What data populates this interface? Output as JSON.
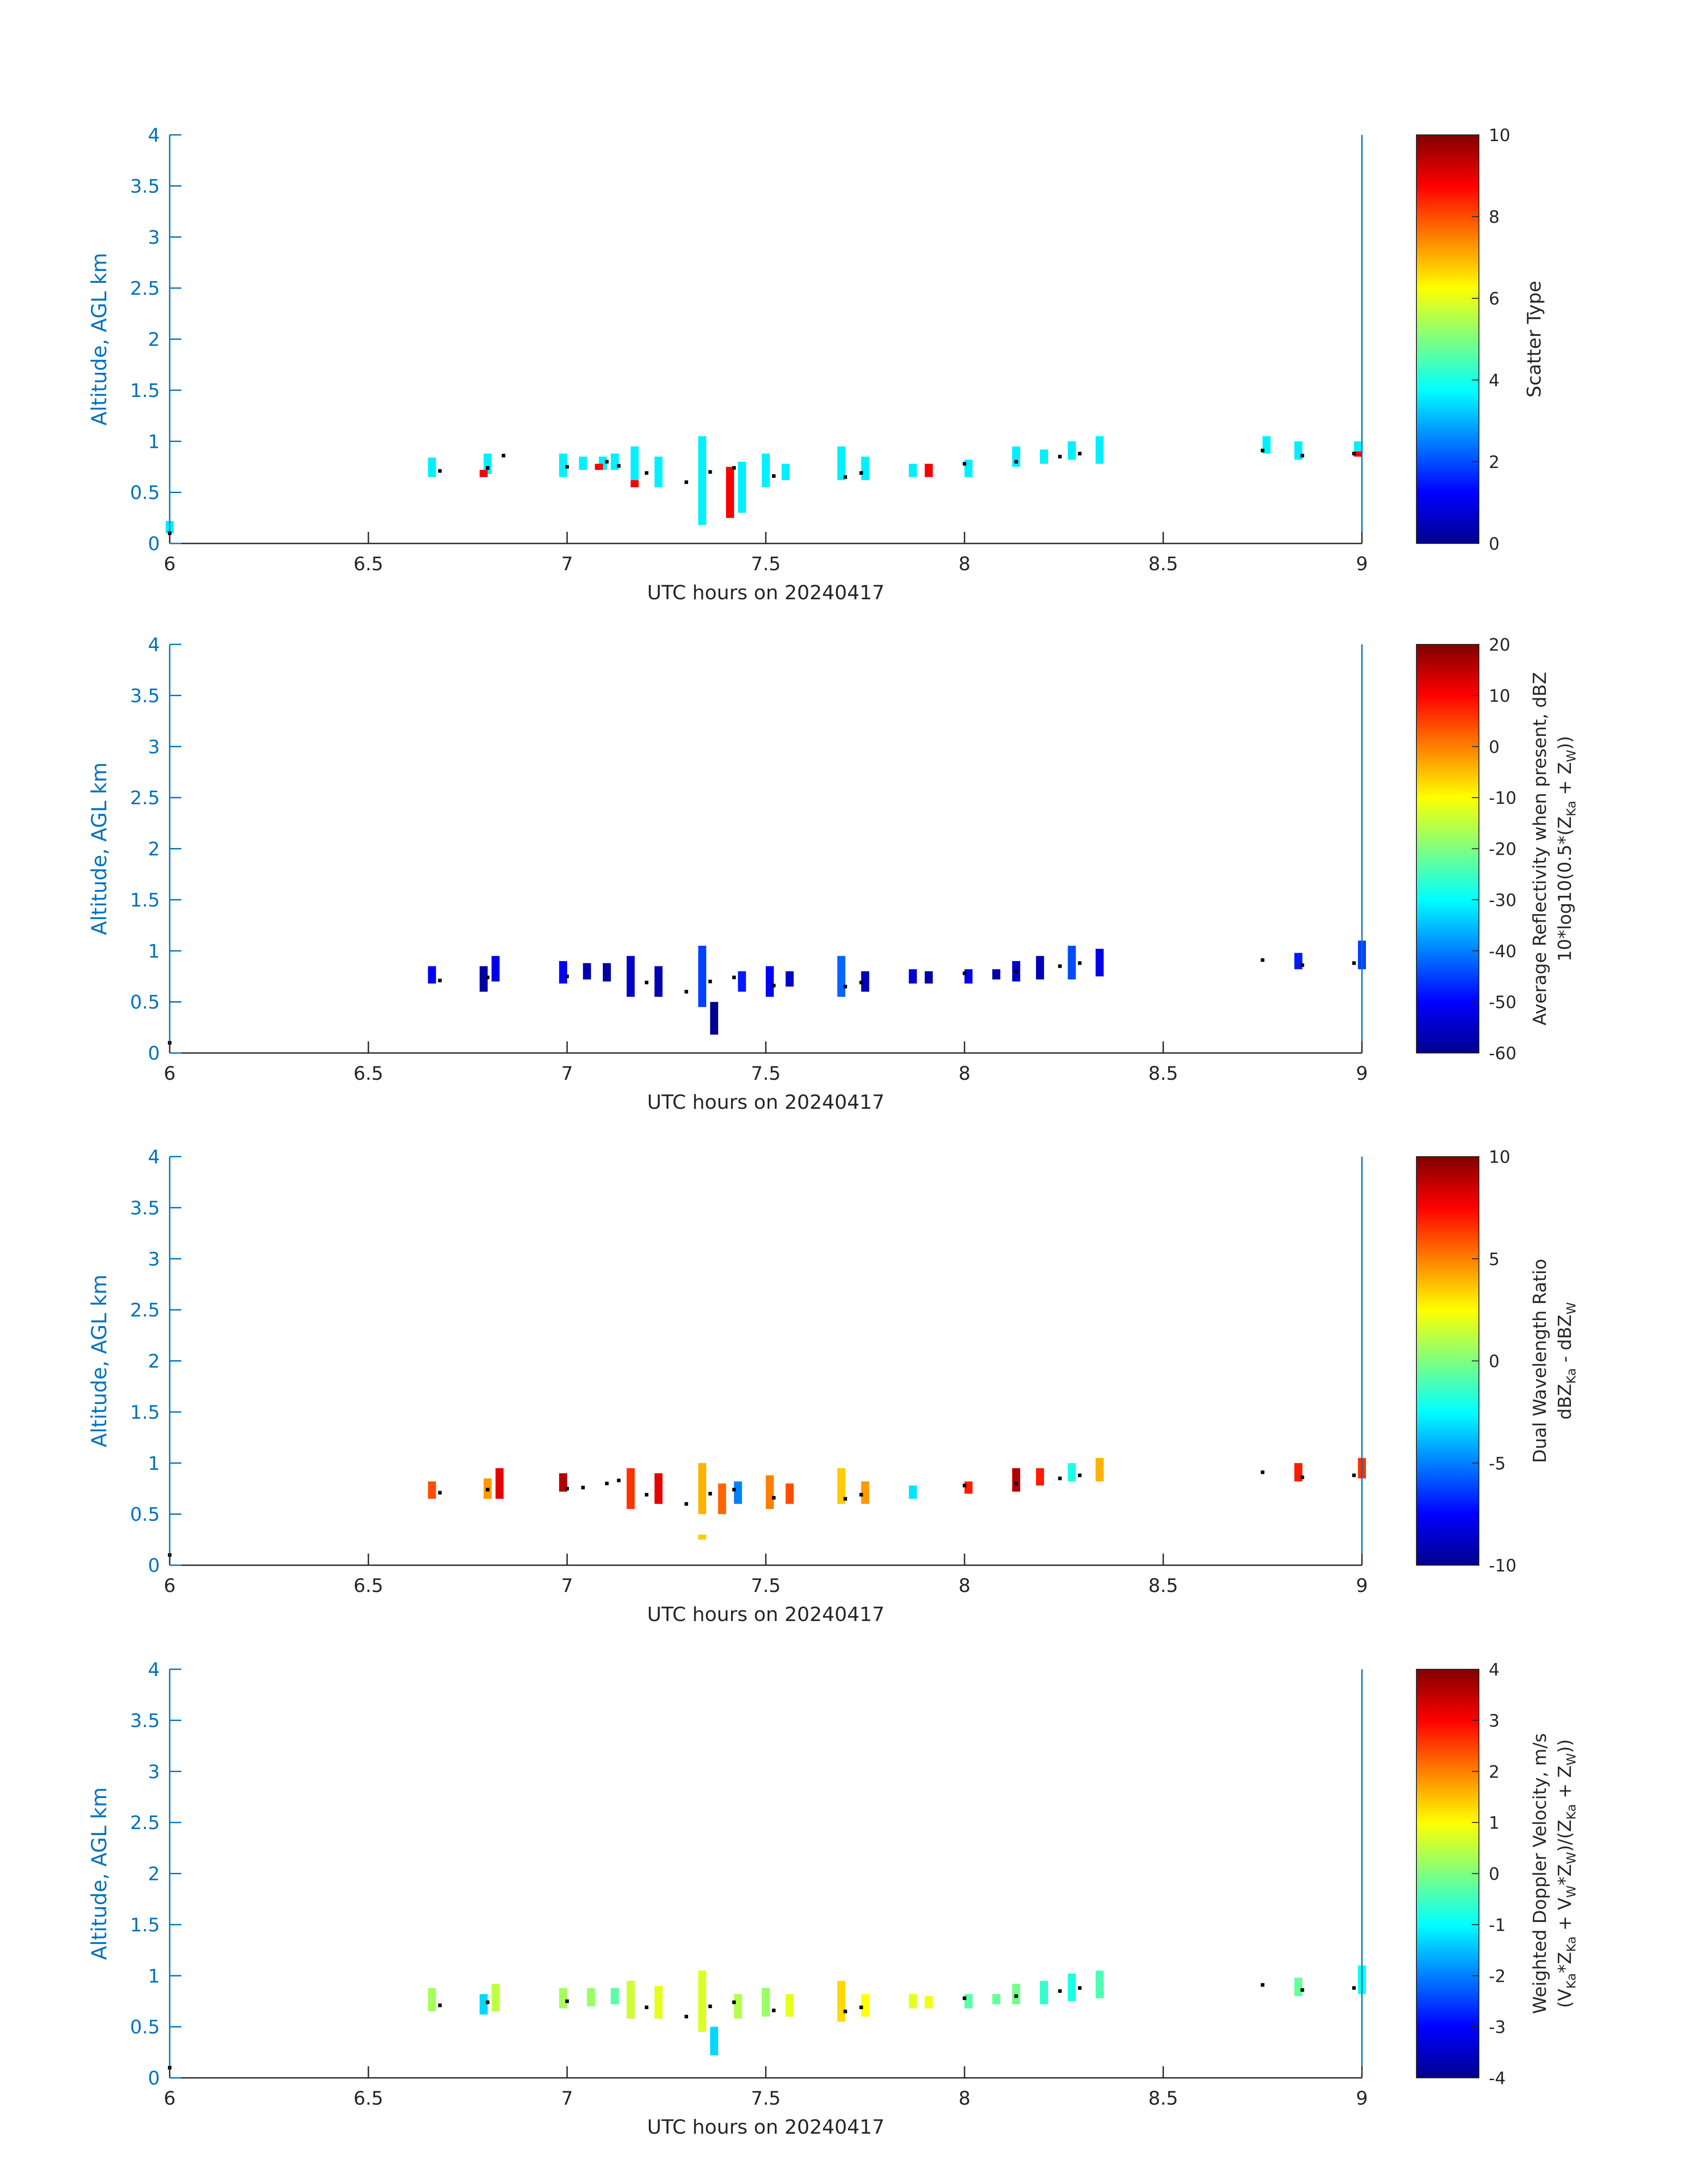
{
  "colors": {
    "axis": "#0072BD",
    "text": "#262626",
    "dots": "#000000",
    "background": "#ffffff"
  },
  "chart_data": [
    {
      "type": "heatmap",
      "xlabel": "UTC hours on 20240417",
      "ylabel": "Altitude, AGL km",
      "xlim": [
        6,
        9
      ],
      "ylim": [
        0,
        4
      ],
      "xticks": [
        "6",
        "6.5",
        "7",
        "7.5",
        "8",
        "8.5",
        "9"
      ],
      "yticks": [
        "0",
        "0.5",
        "1",
        "1.5",
        "2",
        "2.5",
        "3",
        "3.5",
        "4"
      ],
      "colorbar": {
        "label_lines": [
          "Scatter Type"
        ],
        "range": [
          0,
          10
        ],
        "ticks": [
          "0",
          "2",
          "4",
          "6",
          "8",
          "10"
        ],
        "colormap": "jet"
      },
      "cells": [
        {
          "x": 6.0,
          "y0": 0.1,
          "y1": 0.22,
          "v": 3.6
        },
        {
          "x": 6.66,
          "y0": 0.65,
          "y1": 0.84,
          "v": 3.6
        },
        {
          "x": 6.8,
          "y0": 0.68,
          "y1": 0.88,
          "v": 3.6
        },
        {
          "x": 6.79,
          "y0": 0.65,
          "y1": 0.72,
          "v": 8.8
        },
        {
          "x": 6.99,
          "y0": 0.65,
          "y1": 0.88,
          "v": 3.6
        },
        {
          "x": 7.04,
          "y0": 0.72,
          "y1": 0.85,
          "v": 3.6
        },
        {
          "x": 7.09,
          "y0": 0.72,
          "y1": 0.85,
          "v": 3.6
        },
        {
          "x": 7.08,
          "y0": 0.72,
          "y1": 0.78,
          "v": 8.8
        },
        {
          "x": 7.12,
          "y0": 0.72,
          "y1": 0.88,
          "v": 3.6
        },
        {
          "x": 7.17,
          "y0": 0.62,
          "y1": 0.95,
          "v": 3.6
        },
        {
          "x": 7.17,
          "y0": 0.55,
          "y1": 0.62,
          "v": 8.8
        },
        {
          "x": 7.23,
          "y0": 0.55,
          "y1": 0.85,
          "v": 3.6
        },
        {
          "x": 7.34,
          "y0": 0.18,
          "y1": 1.05,
          "v": 3.6
        },
        {
          "x": 7.41,
          "y0": 0.25,
          "y1": 0.75,
          "v": 8.8
        },
        {
          "x": 7.44,
          "y0": 0.3,
          "y1": 0.8,
          "v": 3.6
        },
        {
          "x": 7.5,
          "y0": 0.55,
          "y1": 0.88,
          "v": 3.6
        },
        {
          "x": 7.55,
          "y0": 0.62,
          "y1": 0.78,
          "v": 3.6
        },
        {
          "x": 7.69,
          "y0": 0.62,
          "y1": 0.95,
          "v": 3.6
        },
        {
          "x": 7.75,
          "y0": 0.62,
          "y1": 0.85,
          "v": 3.6
        },
        {
          "x": 7.87,
          "y0": 0.65,
          "y1": 0.78,
          "v": 3.6
        },
        {
          "x": 7.91,
          "y0": 0.65,
          "y1": 0.78,
          "v": 8.8
        },
        {
          "x": 8.01,
          "y0": 0.65,
          "y1": 0.82,
          "v": 3.6
        },
        {
          "x": 8.13,
          "y0": 0.75,
          "y1": 0.95,
          "v": 3.6
        },
        {
          "x": 8.2,
          "y0": 0.78,
          "y1": 0.92,
          "v": 3.6
        },
        {
          "x": 8.27,
          "y0": 0.82,
          "y1": 1.0,
          "v": 3.6
        },
        {
          "x": 8.34,
          "y0": 0.78,
          "y1": 1.05,
          "v": 3.6
        },
        {
          "x": 8.76,
          "y0": 0.88,
          "y1": 1.05,
          "v": 3.6
        },
        {
          "x": 8.84,
          "y0": 0.82,
          "y1": 1.0,
          "v": 3.6
        },
        {
          "x": 8.99,
          "y0": 0.85,
          "y1": 1.0,
          "v": 3.6
        },
        {
          "x": 8.99,
          "y0": 0.85,
          "y1": 0.9,
          "v": 8.8
        }
      ],
      "points": [
        [
          6.0,
          0.1
        ],
        [
          6.68,
          0.71
        ],
        [
          6.8,
          0.74
        ],
        [
          6.84,
          0.86
        ],
        [
          7.0,
          0.75
        ],
        [
          7.1,
          0.8
        ],
        [
          7.13,
          0.76
        ],
        [
          7.2,
          0.69
        ],
        [
          7.3,
          0.6
        ],
        [
          7.36,
          0.7
        ],
        [
          7.42,
          0.74
        ],
        [
          7.52,
          0.66
        ],
        [
          7.7,
          0.65
        ],
        [
          7.74,
          0.69
        ],
        [
          8.0,
          0.78
        ],
        [
          8.13,
          0.8
        ],
        [
          8.24,
          0.85
        ],
        [
          8.29,
          0.88
        ],
        [
          8.75,
          0.91
        ],
        [
          8.85,
          0.86
        ],
        [
          8.98,
          0.88
        ]
      ]
    },
    {
      "type": "heatmap",
      "xlabel": "UTC hours on 20240417",
      "ylabel": "Altitude, AGL km",
      "xlim": [
        6,
        9
      ],
      "ylim": [
        0,
        4
      ],
      "xticks": [
        "6",
        "6.5",
        "7",
        "7.5",
        "8",
        "8.5",
        "9"
      ],
      "yticks": [
        "0",
        "0.5",
        "1",
        "1.5",
        "2",
        "2.5",
        "3",
        "3.5",
        "4"
      ],
      "colorbar": {
        "label_lines": [
          "Average Reflectivity when present, dBZ",
          "10*log10(0.5*(Z",
          "Ka",
          " + Z",
          "W",
          "))"
        ],
        "range": [
          -60,
          20
        ],
        "ticks": [
          "-60",
          "-50",
          "-40",
          "-30",
          "-20",
          "-10",
          "0",
          "10",
          "20"
        ],
        "colormap": "jet"
      },
      "cells": [
        {
          "x": 6.66,
          "y0": 0.68,
          "y1": 0.85,
          "v": -50
        },
        {
          "x": 6.79,
          "y0": 0.6,
          "y1": 0.85,
          "v": -58
        },
        {
          "x": 6.82,
          "y0": 0.7,
          "y1": 0.95,
          "v": -52
        },
        {
          "x": 6.99,
          "y0": 0.68,
          "y1": 0.9,
          "v": -50
        },
        {
          "x": 7.05,
          "y0": 0.72,
          "y1": 0.88,
          "v": -57
        },
        {
          "x": 7.1,
          "y0": 0.7,
          "y1": 0.88,
          "v": -58
        },
        {
          "x": 7.16,
          "y0": 0.55,
          "y1": 0.95,
          "v": -55
        },
        {
          "x": 7.23,
          "y0": 0.55,
          "y1": 0.85,
          "v": -57
        },
        {
          "x": 7.34,
          "y0": 0.45,
          "y1": 1.05,
          "v": -45
        },
        {
          "x": 7.37,
          "y0": 0.18,
          "y1": 0.5,
          "v": -60
        },
        {
          "x": 7.44,
          "y0": 0.6,
          "y1": 0.8,
          "v": -48
        },
        {
          "x": 7.51,
          "y0": 0.55,
          "y1": 0.85,
          "v": -50
        },
        {
          "x": 7.56,
          "y0": 0.65,
          "y1": 0.8,
          "v": -55
        },
        {
          "x": 7.69,
          "y0": 0.55,
          "y1": 0.95,
          "v": -42
        },
        {
          "x": 7.75,
          "y0": 0.6,
          "y1": 0.8,
          "v": -56
        },
        {
          "x": 7.87,
          "y0": 0.68,
          "y1": 0.82,
          "v": -54
        },
        {
          "x": 7.91,
          "y0": 0.68,
          "y1": 0.8,
          "v": -58
        },
        {
          "x": 8.01,
          "y0": 0.68,
          "y1": 0.82,
          "v": -52
        },
        {
          "x": 8.08,
          "y0": 0.72,
          "y1": 0.82,
          "v": -58
        },
        {
          "x": 8.13,
          "y0": 0.7,
          "y1": 0.9,
          "v": -55
        },
        {
          "x": 8.19,
          "y0": 0.72,
          "y1": 0.95,
          "v": -56
        },
        {
          "x": 8.27,
          "y0": 0.72,
          "y1": 1.05,
          "v": -44
        },
        {
          "x": 8.34,
          "y0": 0.75,
          "y1": 1.02,
          "v": -52
        },
        {
          "x": 8.84,
          "y0": 0.82,
          "y1": 0.98,
          "v": -48
        },
        {
          "x": 9.0,
          "y0": 0.82,
          "y1": 1.1,
          "v": -45
        }
      ],
      "points": [
        [
          6.0,
          0.1
        ],
        [
          6.68,
          0.71
        ],
        [
          6.8,
          0.74
        ],
        [
          7.0,
          0.75
        ],
        [
          7.2,
          0.69
        ],
        [
          7.3,
          0.6
        ],
        [
          7.36,
          0.7
        ],
        [
          7.42,
          0.74
        ],
        [
          7.52,
          0.66
        ],
        [
          7.7,
          0.65
        ],
        [
          7.74,
          0.69
        ],
        [
          8.0,
          0.78
        ],
        [
          8.13,
          0.8
        ],
        [
          8.24,
          0.85
        ],
        [
          8.29,
          0.88
        ],
        [
          8.75,
          0.91
        ],
        [
          8.85,
          0.86
        ],
        [
          8.98,
          0.88
        ]
      ]
    },
    {
      "type": "heatmap",
      "xlabel": "UTC hours on 20240417",
      "ylabel": "Altitude, AGL km",
      "xlim": [
        6,
        9
      ],
      "ylim": [
        0,
        4
      ],
      "xticks": [
        "6",
        "6.5",
        "7",
        "7.5",
        "8",
        "8.5",
        "9"
      ],
      "yticks": [
        "0",
        "0.5",
        "1",
        "1.5",
        "2",
        "2.5",
        "3",
        "3.5",
        "4"
      ],
      "colorbar": {
        "label_lines": [
          "Dual Wavelength Ratio",
          "dBZ",
          "Ka",
          " - dBZ",
          "W"
        ],
        "range": [
          -10,
          10
        ],
        "ticks": [
          "-10",
          "-5",
          "0",
          "5",
          "10"
        ],
        "colormap": "jet"
      },
      "cells": [
        {
          "x": 6.66,
          "y0": 0.65,
          "y1": 0.82,
          "v": 6
        },
        {
          "x": 6.8,
          "y0": 0.65,
          "y1": 0.85,
          "v": 4.5
        },
        {
          "x": 6.83,
          "y0": 0.65,
          "y1": 0.95,
          "v": 8
        },
        {
          "x": 6.99,
          "y0": 0.72,
          "y1": 0.9,
          "v": 9
        },
        {
          "x": 7.16,
          "y0": 0.55,
          "y1": 0.95,
          "v": 6.5
        },
        {
          "x": 7.23,
          "y0": 0.6,
          "y1": 0.9,
          "v": 8
        },
        {
          "x": 7.34,
          "y0": 0.5,
          "y1": 1.0,
          "v": 4
        },
        {
          "x": 7.39,
          "y0": 0.5,
          "y1": 0.8,
          "v": 5.5
        },
        {
          "x": 7.34,
          "y0": 0.25,
          "y1": 0.3,
          "v": 3.5
        },
        {
          "x": 7.43,
          "y0": 0.6,
          "y1": 0.82,
          "v": -5
        },
        {
          "x": 7.51,
          "y0": 0.55,
          "y1": 0.88,
          "v": 5
        },
        {
          "x": 7.56,
          "y0": 0.6,
          "y1": 0.8,
          "v": 6
        },
        {
          "x": 7.69,
          "y0": 0.6,
          "y1": 0.95,
          "v": 3.5
        },
        {
          "x": 7.75,
          "y0": 0.6,
          "y1": 0.82,
          "v": 4.5
        },
        {
          "x": 7.87,
          "y0": 0.65,
          "y1": 0.78,
          "v": -3
        },
        {
          "x": 8.01,
          "y0": 0.7,
          "y1": 0.82,
          "v": 7
        },
        {
          "x": 8.13,
          "y0": 0.72,
          "y1": 0.95,
          "v": 9
        },
        {
          "x": 8.19,
          "y0": 0.78,
          "y1": 0.95,
          "v": 7
        },
        {
          "x": 8.27,
          "y0": 0.82,
          "y1": 1.0,
          "v": -2
        },
        {
          "x": 8.34,
          "y0": 0.82,
          "y1": 1.05,
          "v": 4
        },
        {
          "x": 8.84,
          "y0": 0.82,
          "y1": 1.0,
          "v": 7
        },
        {
          "x": 9.0,
          "y0": 0.85,
          "y1": 1.05,
          "v": 6.5
        }
      ],
      "points": [
        [
          6.0,
          0.1
        ],
        [
          6.68,
          0.71
        ],
        [
          6.8,
          0.74
        ],
        [
          7.0,
          0.75
        ],
        [
          7.04,
          0.76
        ],
        [
          7.1,
          0.8
        ],
        [
          7.13,
          0.83
        ],
        [
          7.2,
          0.69
        ],
        [
          7.3,
          0.6
        ],
        [
          7.36,
          0.7
        ],
        [
          7.42,
          0.74
        ],
        [
          7.52,
          0.66
        ],
        [
          7.7,
          0.65
        ],
        [
          7.74,
          0.69
        ],
        [
          8.0,
          0.78
        ],
        [
          8.13,
          0.8
        ],
        [
          8.24,
          0.85
        ],
        [
          8.29,
          0.88
        ],
        [
          8.75,
          0.91
        ],
        [
          8.85,
          0.86
        ],
        [
          8.98,
          0.88
        ]
      ]
    },
    {
      "type": "heatmap",
      "xlabel": "UTC hours on 20240417",
      "ylabel": "Altitude, AGL km",
      "xlim": [
        6,
        9
      ],
      "ylim": [
        0,
        4
      ],
      "xticks": [
        "6",
        "6.5",
        "7",
        "7.5",
        "8",
        "8.5",
        "9"
      ],
      "yticks": [
        "0",
        "0.5",
        "1",
        "1.5",
        "2",
        "2.5",
        "3",
        "3.5",
        "4"
      ],
      "colorbar": {
        "label_lines": [
          "Weighted Doppler Velocity, m/s",
          "(V",
          "Ka",
          "*Z",
          "Ka",
          " + V",
          "W",
          "*Z",
          "W",
          ")/(Z",
          "Ka",
          " + Z",
          "W",
          "))"
        ],
        "range": [
          -4,
          4
        ],
        "ticks": [
          "-4",
          "-3",
          "-2",
          "-1",
          "0",
          "1",
          "2",
          "3",
          "4"
        ],
        "colormap": "jet"
      },
      "cells": [
        {
          "x": 6.66,
          "y0": 0.65,
          "y1": 0.88,
          "v": 0.3
        },
        {
          "x": 6.79,
          "y0": 0.62,
          "y1": 0.82,
          "v": -1.3
        },
        {
          "x": 6.82,
          "y0": 0.65,
          "y1": 0.92,
          "v": 0.5
        },
        {
          "x": 6.99,
          "y0": 0.68,
          "y1": 0.88,
          "v": 0.3
        },
        {
          "x": 7.06,
          "y0": 0.7,
          "y1": 0.88,
          "v": 0.2
        },
        {
          "x": 7.12,
          "y0": 0.72,
          "y1": 0.88,
          "v": -0.3
        },
        {
          "x": 7.16,
          "y0": 0.58,
          "y1": 0.95,
          "v": 0.6
        },
        {
          "x": 7.23,
          "y0": 0.58,
          "y1": 0.9,
          "v": 0.8
        },
        {
          "x": 7.34,
          "y0": 0.45,
          "y1": 1.05,
          "v": 0.7
        },
        {
          "x": 7.37,
          "y0": 0.22,
          "y1": 0.5,
          "v": -1.3
        },
        {
          "x": 7.43,
          "y0": 0.58,
          "y1": 0.82,
          "v": 0.4
        },
        {
          "x": 7.5,
          "y0": 0.6,
          "y1": 0.88,
          "v": 0.2
        },
        {
          "x": 7.56,
          "y0": 0.6,
          "y1": 0.82,
          "v": 0.8
        },
        {
          "x": 7.69,
          "y0": 0.55,
          "y1": 0.95,
          "v": 1.3
        },
        {
          "x": 7.75,
          "y0": 0.6,
          "y1": 0.82,
          "v": 1.0
        },
        {
          "x": 7.87,
          "y0": 0.68,
          "y1": 0.82,
          "v": 0.8
        },
        {
          "x": 7.91,
          "y0": 0.68,
          "y1": 0.8,
          "v": 0.9
        },
        {
          "x": 8.01,
          "y0": 0.68,
          "y1": 0.82,
          "v": -0.3
        },
        {
          "x": 8.08,
          "y0": 0.72,
          "y1": 0.82,
          "v": -0.2
        },
        {
          "x": 8.13,
          "y0": 0.72,
          "y1": 0.92,
          "v": -0.1
        },
        {
          "x": 8.2,
          "y0": 0.72,
          "y1": 0.95,
          "v": -0.6
        },
        {
          "x": 8.27,
          "y0": 0.75,
          "y1": 1.02,
          "v": -0.8
        },
        {
          "x": 8.34,
          "y0": 0.78,
          "y1": 1.05,
          "v": -0.4
        },
        {
          "x": 8.84,
          "y0": 0.8,
          "y1": 0.98,
          "v": -0.2
        },
        {
          "x": 9.0,
          "y0": 0.82,
          "y1": 1.1,
          "v": -0.9
        }
      ],
      "points": [
        [
          6.0,
          0.1
        ],
        [
          6.68,
          0.71
        ],
        [
          6.8,
          0.74
        ],
        [
          7.0,
          0.75
        ],
        [
          7.2,
          0.69
        ],
        [
          7.3,
          0.6
        ],
        [
          7.36,
          0.7
        ],
        [
          7.42,
          0.74
        ],
        [
          7.52,
          0.66
        ],
        [
          7.7,
          0.65
        ],
        [
          7.74,
          0.69
        ],
        [
          8.0,
          0.78
        ],
        [
          8.13,
          0.8
        ],
        [
          8.24,
          0.85
        ],
        [
          8.29,
          0.88
        ],
        [
          8.75,
          0.91
        ],
        [
          8.85,
          0.86
        ],
        [
          8.98,
          0.88
        ]
      ]
    }
  ]
}
